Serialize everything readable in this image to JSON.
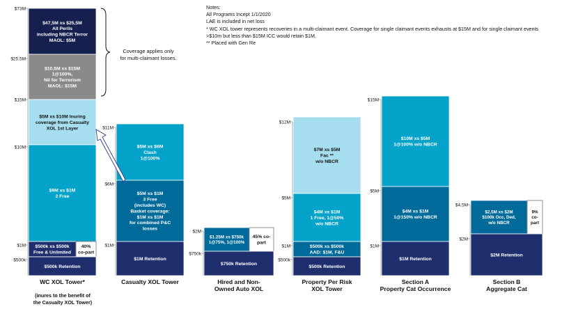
{
  "colors": {
    "navy": "#1f2f6e",
    "teal_blue": "#006a9a",
    "cyan": "#05a2c9",
    "light_cyan": "#a6ddef",
    "gray": "#8a8a8a",
    "dark_navy": "#15204e",
    "white": "#ffffff",
    "black": "#111111"
  },
  "notes": {
    "heading": "Notes:",
    "lines": [
      "All Programs Incept 1/1/2020",
      "LAE is included in net loss",
      "* WC XOL tower represents recoveries in a multi-claimant event. Coverage for single claimant events exhausts at $15M and for single claimant events",
      ">$10m but less than $15M ICC would retain $1M.",
      "** Placed with Gen Re"
    ]
  },
  "brace_note": [
    "Coverage applies only",
    "for multi-claimant losses."
  ],
  "footnote": [
    "(inures to the benefit of",
    "the Casualty XOL Tower)"
  ],
  "towers": [
    {
      "id": "wc",
      "name": [
        "WC XOL Tower*"
      ],
      "axis": [
        {
          "label": "$73M"
        },
        {
          "label": "$25,5M"
        },
        {
          "label": "$15M"
        },
        {
          "label": "$10M"
        },
        {
          "label": "$1M"
        },
        {
          "label": "$500k"
        }
      ],
      "segments": [
        {
          "lines": [
            "$47,5M xs $25,5M",
            "All Perils",
            "including NBCR Terror",
            "MAOL: $5M"
          ],
          "fill": "dark_navy"
        },
        {
          "lines": [
            "$10,5M xs $15M",
            "1@100%,",
            "Nil for Terrorism",
            "MAOL: $15M"
          ],
          "fill": "gray"
        },
        {
          "lines": [
            "$5M xs $10M Inuring",
            "coverage from Casualty",
            "XOL 1st Layer"
          ],
          "fill": "light_cyan"
        },
        {
          "lines": [
            "$9M xs $1M",
            "2 Free"
          ],
          "fill": "cyan"
        },
        {
          "lines": [
            "$500k xs $500k",
            "Free & Unlimited"
          ],
          "fill": "navy"
        },
        {
          "lines": [
            "40%",
            "co-part"
          ],
          "fill": "white"
        },
        {
          "lines": [
            "$500k Retention"
          ],
          "fill": "navy"
        }
      ]
    },
    {
      "id": "casualty",
      "name": [
        "Casualty XOL Tower"
      ],
      "axis": [
        {
          "label": "$11M"
        },
        {
          "label": "$6M"
        },
        {
          "label": "$1M"
        }
      ],
      "segments": [
        {
          "lines": [
            "$5M xs $6M",
            "Clash",
            "1@100%"
          ],
          "fill": "cyan"
        },
        {
          "lines": [
            "$5M xs $1M",
            "3 Free",
            "(includes WC)",
            "Basket coverage:",
            "$1M xs $1M",
            "for combined P&C",
            "losses"
          ],
          "fill": "teal_blue"
        },
        {
          "lines": [
            "$1M Retention"
          ],
          "fill": "navy"
        }
      ]
    },
    {
      "id": "auto",
      "name": [
        "Hired and Non-",
        "Owned Auto XOL"
      ],
      "axis": [
        {
          "label": "$2M"
        },
        {
          "label": "$750k"
        }
      ],
      "segments": [
        {
          "lines": [
            "$1.25M xs $750k",
            "1@75%, 1@100%"
          ],
          "fill": "teal_blue"
        },
        {
          "lines": [
            "45% co-",
            "part"
          ],
          "fill": "white"
        },
        {
          "lines": [
            "$750k Retention"
          ],
          "fill": "navy"
        }
      ]
    },
    {
      "id": "property",
      "name": [
        "Property Per Risk",
        "XOL Tower"
      ],
      "axis": [
        {
          "label": "$12M"
        },
        {
          "label": "$5M"
        },
        {
          "label": "$1M"
        },
        {
          "label": "$500k"
        }
      ],
      "segments": [
        {
          "lines": [
            "$7M xs $5M",
            "Fac **",
            "w/o NBCR"
          ],
          "fill": "light_cyan"
        },
        {
          "lines": [
            "$4M xs $1M",
            "1 Free, 1@50%",
            "w/o NBCR"
          ],
          "fill": "cyan"
        },
        {
          "lines": [
            "$500k xs $500k",
            "AAD: $1M, F&U"
          ],
          "fill": "teal_blue"
        },
        {
          "lines": [
            "$500k Retention"
          ],
          "fill": "navy"
        }
      ]
    },
    {
      "id": "sectionA",
      "name": [
        "Section A",
        "Property Cat Occurrence"
      ],
      "axis": [
        {
          "label": "$15M"
        },
        {
          "label": "$5M"
        },
        {
          "label": "$1M"
        }
      ],
      "segments": [
        {
          "lines": [
            "$10M xs $5M",
            "1@100% w/o NBCR"
          ],
          "fill": "cyan"
        },
        {
          "lines": [
            "$4M xs $1M",
            "1@150% w/o NBCR"
          ],
          "fill": "teal_blue"
        },
        {
          "lines": [
            "$1M Retention"
          ],
          "fill": "navy"
        }
      ]
    },
    {
      "id": "sectionB",
      "name": [
        "Section B",
        "Aggregate Cat"
      ],
      "axis": [
        {
          "label": "$4,5M"
        },
        {
          "label": "$2M"
        }
      ],
      "segments": [
        {
          "lines": [
            "$2,5M xs $2M",
            "$100k Occ, Ded,",
            "w/o NBCR"
          ],
          "fill": "teal_blue"
        },
        {
          "lines": [
            "9%",
            "co-",
            "part"
          ],
          "fill": "white"
        },
        {
          "lines": [
            "$2M Retention"
          ],
          "fill": "navy"
        }
      ]
    }
  ]
}
